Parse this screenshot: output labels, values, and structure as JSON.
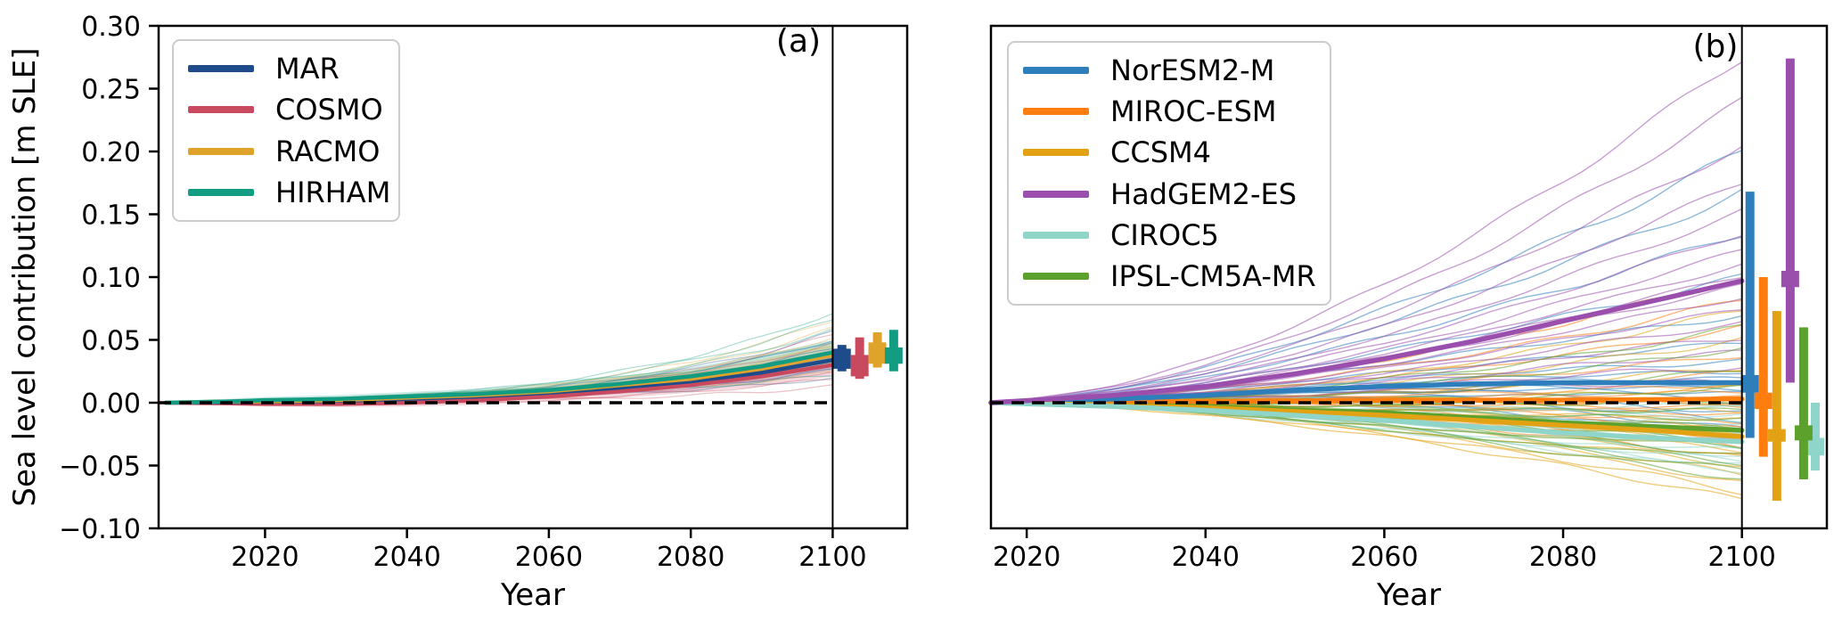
{
  "figure": {
    "background": "#ffffff",
    "frame_color": "#000000",
    "zero_line_color": "#000000"
  },
  "labels": {
    "ylabel": "Sea level contribution [m SLE]"
  },
  "chart_data": {
    "type": "line",
    "panels": [
      {
        "id": "a",
        "annotation": "(a)",
        "xlabel": "Year",
        "ylabel": "Sea level contribution [m SLE]",
        "xlim": [
          2005,
          2110.5
        ],
        "ylim": [
          -0.1,
          0.3
        ],
        "xticks": [
          2020,
          2040,
          2060,
          2080,
          2100
        ],
        "yticks": [
          0.3,
          0.25,
          0.2,
          0.15,
          0.1,
          0.05,
          0.0,
          -0.05,
          -0.1
        ],
        "ytick_labels_visible": true,
        "grid": false,
        "legend_position": "upper-left",
        "start_year": 2006,
        "end_year": 2100,
        "vline_x": 2100,
        "hline_y": 0,
        "shape_power": 3,
        "series": [
          {
            "name": "MAR",
            "color": "#1e4c8b",
            "mean": [
              [
                2006,
                0
              ],
              [
                2015,
                0.0005
              ],
              [
                2020,
                0.0008
              ],
              [
                2030,
                0.0015
              ],
              [
                2040,
                0.003
              ],
              [
                2050,
                0.005
              ],
              [
                2060,
                0.008
              ],
              [
                2070,
                0.012
              ],
              [
                2080,
                0.017
              ],
              [
                2090,
                0.024
              ],
              [
                2100,
                0.034
              ]
            ],
            "band_halfwidth": [
              [
                2006,
                0.001
              ],
              [
                2020,
                0.002
              ],
              [
                2040,
                0.003
              ],
              [
                2060,
                0.004
              ],
              [
                2080,
                0.006
              ],
              [
                2090,
                0.007
              ],
              [
                2100,
                0.008
              ]
            ],
            "member_end_values": [
              0.02,
              0.026,
              0.031,
              0.037,
              0.043,
              0.05,
              0.056
            ],
            "errorbar": {
              "x": 2101.3,
              "whisker": [
                0.025,
                0.046
              ],
              "box": [
                0.027,
                0.043
              ],
              "center": 0.035
            }
          },
          {
            "name": "COSMO",
            "color": "#c94a5e",
            "mean": [
              [
                2006,
                0
              ],
              [
                2015,
                -0.0005
              ],
              [
                2020,
                -0.001
              ],
              [
                2030,
                -0.001
              ],
              [
                2040,
                0.0
              ],
              [
                2050,
                0.002
              ],
              [
                2060,
                0.005
              ],
              [
                2070,
                0.009
              ],
              [
                2080,
                0.014
              ],
              [
                2090,
                0.021
              ],
              [
                2100,
                0.03
              ]
            ],
            "band_halfwidth": [
              [
                2006,
                0.001
              ],
              [
                2020,
                0.002
              ],
              [
                2040,
                0.003
              ],
              [
                2060,
                0.004
              ],
              [
                2080,
                0.006
              ],
              [
                2090,
                0.008
              ],
              [
                2100,
                0.009
              ]
            ],
            "member_end_values": [
              0.013,
              0.019,
              0.025,
              0.032,
              0.04,
              0.047,
              0.054
            ],
            "errorbar": {
              "x": 2103.8,
              "whisker": [
                0.019,
                0.052
              ],
              "box": [
                0.021,
                0.038
              ],
              "center": 0.029
            }
          },
          {
            "name": "RACMO",
            "color": "#dfa32b",
            "mean": [
              [
                2006,
                0
              ],
              [
                2015,
                0.001
              ],
              [
                2020,
                0.001
              ],
              [
                2030,
                0.002
              ],
              [
                2040,
                0.004
              ],
              [
                2050,
                0.006
              ],
              [
                2060,
                0.009
              ],
              [
                2070,
                0.014
              ],
              [
                2080,
                0.019
              ],
              [
                2090,
                0.027
              ],
              [
                2100,
                0.038
              ]
            ],
            "band_halfwidth": [
              [
                2006,
                0.001
              ],
              [
                2020,
                0.002
              ],
              [
                2040,
                0.003
              ],
              [
                2060,
                0.004
              ],
              [
                2080,
                0.006
              ],
              [
                2090,
                0.008
              ],
              [
                2100,
                0.009
              ]
            ],
            "member_end_values": [
              0.024,
              0.031,
              0.038,
              0.045,
              0.052,
              0.059,
              0.066
            ],
            "errorbar": {
              "x": 2106.3,
              "whisker": [
                0.028,
                0.056
              ],
              "box": [
                0.031,
                0.048
              ],
              "center": 0.04
            }
          },
          {
            "name": "HIRHAM",
            "color": "#129d82",
            "mean": [
              [
                2006,
                0
              ],
              [
                2015,
                0.001
              ],
              [
                2020,
                0.002
              ],
              [
                2030,
                0.003
              ],
              [
                2040,
                0.005
              ],
              [
                2050,
                0.007
              ],
              [
                2060,
                0.01
              ],
              [
                2070,
                0.015
              ],
              [
                2080,
                0.021
              ],
              [
                2090,
                0.029
              ],
              [
                2100,
                0.04
              ]
            ],
            "band_halfwidth": [
              [
                2006,
                0.0015
              ],
              [
                2020,
                0.0025
              ],
              [
                2040,
                0.0035
              ],
              [
                2060,
                0.005
              ],
              [
                2080,
                0.007
              ],
              [
                2090,
                0.009
              ],
              [
                2100,
                0.01
              ]
            ],
            "member_end_values": [
              0.022,
              0.031,
              0.04,
              0.049,
              0.058,
              0.066,
              0.072
            ],
            "errorbar": {
              "x": 2108.6,
              "whisker": [
                0.025,
                0.058
              ],
              "box": [
                0.031,
                0.044
              ],
              "center": 0.038
            }
          }
        ]
      },
      {
        "id": "b",
        "annotation": "(b)",
        "xlabel": "Year",
        "ylabel": "",
        "xlim": [
          2016,
          2109.5
        ],
        "ylim": [
          -0.1,
          0.3
        ],
        "xticks": [
          2020,
          2040,
          2060,
          2080,
          2100
        ],
        "yticks": [
          0.3,
          0.25,
          0.2,
          0.15,
          0.1,
          0.05,
          0.0,
          -0.05,
          -0.1
        ],
        "ytick_labels_visible": false,
        "grid": false,
        "legend_position": "upper-left",
        "start_year": 2016,
        "end_year": 2100,
        "vline_x": 2100,
        "hline_y": 0,
        "shape_power": 1.7,
        "series": [
          {
            "name": "NorESM2-M",
            "color": "#2e7ebc",
            "mean": [
              [
                2016,
                0
              ],
              [
                2030,
                0.003
              ],
              [
                2040,
                0.006
              ],
              [
                2050,
                0.01
              ],
              [
                2060,
                0.013
              ],
              [
                2070,
                0.015
              ],
              [
                2080,
                0.016
              ],
              [
                2090,
                0.016
              ],
              [
                2100,
                0.016
              ]
            ],
            "band_halfwidth": [],
            "member_end_values": [
              -0.028,
              -0.021,
              -0.014,
              -0.008,
              -0.002,
              0.003,
              0.007,
              0.011,
              0.015,
              0.019,
              0.025,
              0.033,
              0.048,
              0.07,
              0.1,
              0.135,
              0.168,
              0.2
            ],
            "errorbar": {
              "x": 2100.9,
              "whisker": [
                -0.028,
                0.168
              ],
              "box": [
                0.008,
                0.022
              ],
              "center": 0.015
            }
          },
          {
            "name": "MIROC-ESM",
            "color": "#fd7e0e",
            "mean": [
              [
                2016,
                0
              ],
              [
                2040,
                0.001
              ],
              [
                2060,
                0.002
              ],
              [
                2080,
                0.002
              ],
              [
                2100,
                0.003
              ]
            ],
            "band_halfwidth": [],
            "member_end_values": [
              -0.043,
              -0.035,
              -0.028,
              -0.021,
              -0.015,
              -0.009,
              -0.004,
              0.0,
              0.004,
              0.009,
              0.015,
              0.024,
              0.038,
              0.06,
              0.082,
              0.1
            ],
            "errorbar": {
              "x": 2102.4,
              "whisker": [
                -0.043,
                0.1
              ],
              "box": [
                -0.005,
                0.008
              ],
              "center": 0.001
            }
          },
          {
            "name": "CCSM4",
            "color": "#e2a213",
            "mean": [
              [
                2016,
                0
              ],
              [
                2030,
                -0.002
              ],
              [
                2040,
                -0.004
              ],
              [
                2050,
                -0.007
              ],
              [
                2060,
                -0.01
              ],
              [
                2070,
                -0.014
              ],
              [
                2080,
                -0.018
              ],
              [
                2090,
                -0.022
              ],
              [
                2100,
                -0.027
              ]
            ],
            "band_halfwidth": [],
            "member_end_values": [
              -0.078,
              -0.071,
              -0.064,
              -0.057,
              -0.05,
              -0.044,
              -0.038,
              -0.032,
              -0.026,
              -0.02,
              -0.014,
              -0.007,
              0.001,
              0.012,
              0.028,
              0.05,
              0.073
            ],
            "errorbar": {
              "x": 2103.9,
              "whisker": [
                -0.078,
                0.073
              ],
              "box": [
                -0.031,
                -0.021
              ],
              "center": -0.026
            }
          },
          {
            "name": "HadGEM2-ES",
            "color": "#9a4fad",
            "mean": [
              [
                2016,
                0
              ],
              [
                2030,
                0.006
              ],
              [
                2040,
                0.013
              ],
              [
                2050,
                0.023
              ],
              [
                2060,
                0.035
              ],
              [
                2070,
                0.049
              ],
              [
                2080,
                0.065
              ],
              [
                2090,
                0.081
              ],
              [
                2100,
                0.097
              ]
            ],
            "band_halfwidth": [],
            "member_end_values": [
              0.016,
              0.028,
              0.04,
              0.052,
              0.063,
              0.074,
              0.084,
              0.093,
              0.101,
              0.11,
              0.121,
              0.135,
              0.152,
              0.175,
              0.205,
              0.24,
              0.275
            ],
            "errorbar": {
              "x": 2105.4,
              "whisker": [
                0.016,
                0.274
              ],
              "box": [
                0.092,
                0.105
              ],
              "center": 0.098
            }
          },
          {
            "name": "CIROC5",
            "color": "#8fd5c9",
            "mean": [
              [
                2016,
                0
              ],
              [
                2030,
                -0.003
              ],
              [
                2040,
                -0.006
              ],
              [
                2050,
                -0.01
              ],
              [
                2060,
                -0.014
              ],
              [
                2070,
                -0.019
              ],
              [
                2080,
                -0.024
              ],
              [
                2090,
                -0.028
              ],
              [
                2100,
                -0.031
              ]
            ],
            "band_halfwidth": [],
            "member_end_values": [
              -0.054,
              -0.05,
              -0.046,
              -0.042,
              -0.038,
              -0.034,
              -0.031,
              -0.027,
              -0.023,
              -0.019,
              -0.014,
              -0.009,
              -0.004,
              0.0
            ],
            "errorbar": {
              "x": 2108.2,
              "whisker": [
                -0.054,
                0.0
              ],
              "box": [
                -0.042,
                -0.028
              ],
              "center": -0.034
            }
          },
          {
            "name": "IPSL-CM5A-MR",
            "color": "#5ca12b",
            "mean": [
              [
                2016,
                0
              ],
              [
                2030,
                -0.002
              ],
              [
                2040,
                -0.003
              ],
              [
                2050,
                -0.006
              ],
              [
                2060,
                -0.008
              ],
              [
                2070,
                -0.012
              ],
              [
                2080,
                -0.016
              ],
              [
                2090,
                -0.019
              ],
              [
                2100,
                -0.022
              ]
            ],
            "band_halfwidth": [],
            "member_end_values": [
              -0.061,
              -0.054,
              -0.048,
              -0.042,
              -0.036,
              -0.03,
              -0.025,
              -0.019,
              -0.013,
              -0.006,
              0.002,
              0.012,
              0.026,
              0.044,
              0.06
            ],
            "errorbar": {
              "x": 2106.9,
              "whisker": [
                -0.061,
                0.06
              ],
              "box": [
                -0.03,
                -0.018
              ],
              "center": -0.024
            }
          }
        ]
      }
    ]
  }
}
